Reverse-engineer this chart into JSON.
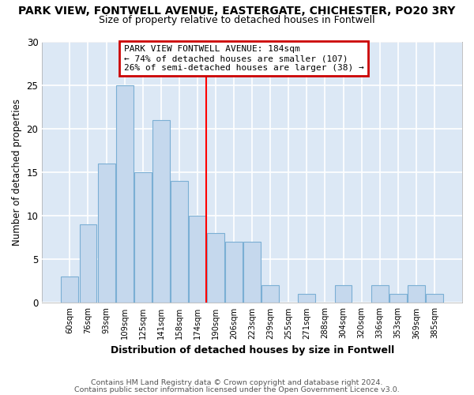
{
  "title": "PARK VIEW, FONTWELL AVENUE, EASTERGATE, CHICHESTER, PO20 3RY",
  "subtitle": "Size of property relative to detached houses in Fontwell",
  "xlabel": "Distribution of detached houses by size in Fontwell",
  "ylabel": "Number of detached properties",
  "bar_labels": [
    "60sqm",
    "76sqm",
    "93sqm",
    "109sqm",
    "125sqm",
    "141sqm",
    "158sqm",
    "174sqm",
    "190sqm",
    "206sqm",
    "223sqm",
    "239sqm",
    "255sqm",
    "271sqm",
    "288sqm",
    "304sqm",
    "320sqm",
    "336sqm",
    "353sqm",
    "369sqm",
    "385sqm"
  ],
  "bar_values": [
    3,
    9,
    16,
    25,
    15,
    21,
    14,
    10,
    8,
    7,
    7,
    2,
    0,
    1,
    0,
    2,
    0,
    2,
    1,
    2,
    1
  ],
  "bar_color": "#c5d8ed",
  "bar_edge_color": "#7bafd4",
  "vline_x": 7.5,
  "vline_color": "red",
  "ylim": [
    0,
    30
  ],
  "yticks": [
    0,
    5,
    10,
    15,
    20,
    25,
    30
  ],
  "annotation_title": "PARK VIEW FONTWELL AVENUE: 184sqm",
  "annotation_line1": "← 74% of detached houses are smaller (107)",
  "annotation_line2": "26% of semi-detached houses are larger (38) →",
  "annotation_box_color": "#ffffff",
  "annotation_box_edge": "#cc0000",
  "footer1": "Contains HM Land Registry data © Crown copyright and database right 2024.",
  "footer2": "Contains public sector information licensed under the Open Government Licence v3.0.",
  "plot_bg_color": "#dce8f5",
  "fig_bg_color": "#ffffff",
  "grid_color": "#ffffff"
}
